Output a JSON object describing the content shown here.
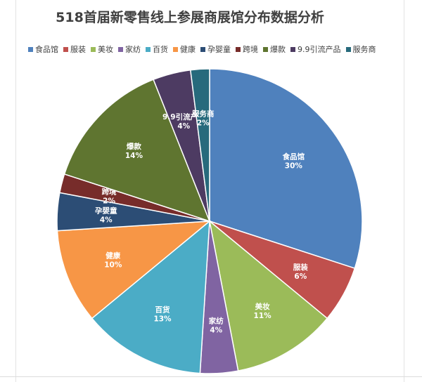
{
  "chart_data": {
    "type": "pie",
    "title": "518首届新零售线上参展商展馆分布数据分析",
    "categories": [
      "食品馆",
      "服装",
      "美妆",
      "家纺",
      "百货",
      "健康",
      "孕婴童",
      "跨境",
      "爆款",
      "9.9引流产品",
      "服务商"
    ],
    "values": [
      30,
      6,
      11,
      4,
      13,
      10,
      4,
      2,
      14,
      4,
      2
    ],
    "value_labels": [
      "30%",
      "6%",
      "11%",
      "4%",
      "13%",
      "10%",
      "4%",
      "2%",
      "14%",
      "4%",
      "2%"
    ],
    "colors": [
      "#4F81BD",
      "#C0504D",
      "#9BBB59",
      "#8064A2",
      "#4BACC6",
      "#F79646",
      "#2C4D75",
      "#772C2A",
      "#5F7530",
      "#4D3B62",
      "#276A7C"
    ],
    "legend_position": "top"
  }
}
